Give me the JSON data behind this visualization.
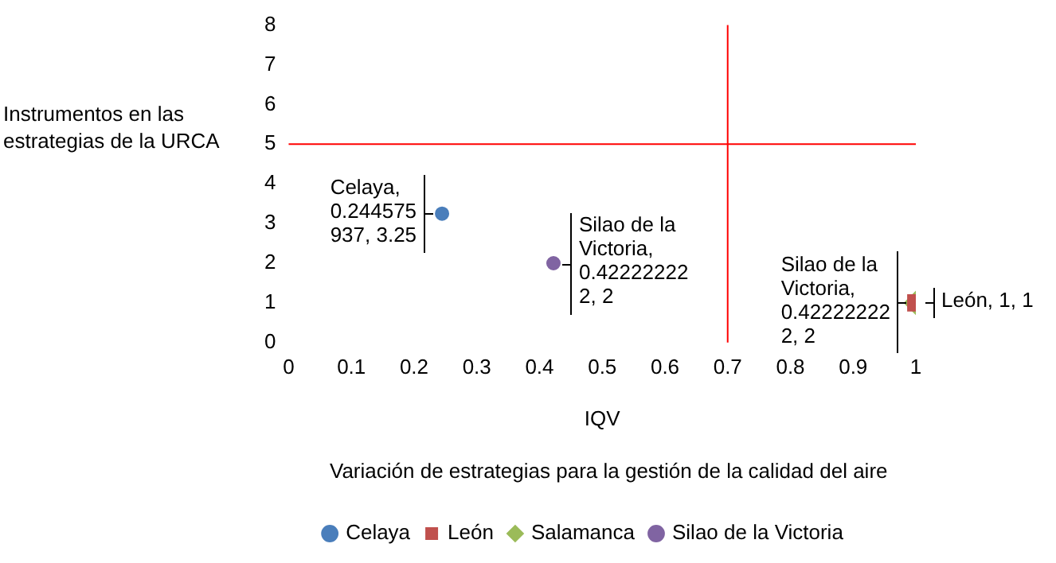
{
  "chart_data": {
    "type": "scatter",
    "xlabel": "IQV",
    "ylabel": "Instrumentos en las estrategias de la URCA",
    "annotations": [
      "Variación de estrategias para la gestión de la calidad del aire"
    ],
    "xlim": [
      0,
      1
    ],
    "xticks": [
      0,
      0.1,
      0.2,
      0.3,
      0.4,
      0.5,
      0.6,
      0.7,
      0.8,
      0.9,
      1
    ],
    "ylim": [
      0,
      8
    ],
    "yticks": [
      0,
      1,
      2,
      3,
      4,
      5,
      6,
      7,
      8
    ],
    "grid": false,
    "legend": "bottom",
    "ref_lines": [
      {
        "axis": "y",
        "value": 5,
        "color": "#ff0000"
      },
      {
        "axis": "x",
        "value": 0.7,
        "color": "#ff0000"
      }
    ],
    "series": [
      {
        "name": "Celaya",
        "color": "#4a7ebb",
        "marker": "circle",
        "x": [
          0.244575937
        ],
        "values": [
          3.25
        ],
        "value_labels": [
          "Celaya, 0.244575937, 3.25"
        ]
      },
      {
        "name": "León",
        "color": "#c0504d",
        "marker": "square",
        "x": [
          1
        ],
        "values": [
          1
        ],
        "value_labels": [
          "León, 1, 1"
        ]
      },
      {
        "name": "Salamanca",
        "color": "#9bbb59",
        "marker": "diamond",
        "x": [
          1
        ],
        "values": [
          1
        ],
        "value_labels": [
          "Silao de la Victoria, 0.422222222, 2"
        ]
      },
      {
        "name": "Silao de la Victoria",
        "color": "#8064a2",
        "marker": "circle",
        "x": [
          0.422222222
        ],
        "values": [
          2
        ],
        "value_labels": [
          "Silao de la Victoria, 0.422222222, 2"
        ]
      }
    ]
  }
}
